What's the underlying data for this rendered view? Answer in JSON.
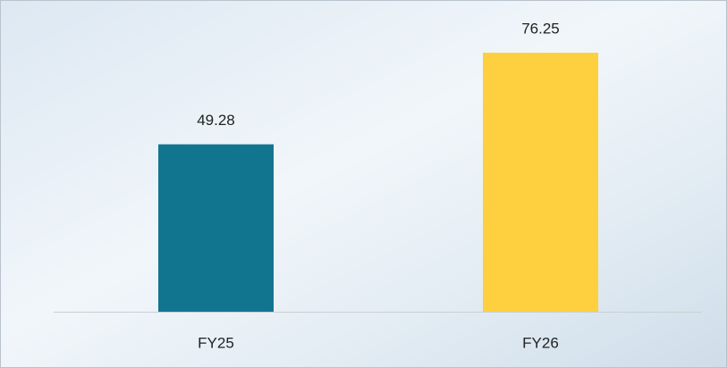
{
  "chart_data": {
    "type": "bar",
    "categories": [
      "FY25",
      "FY26"
    ],
    "values": [
      49.28,
      76.25
    ],
    "colors": [
      "#127590",
      "#fed040"
    ]
  }
}
